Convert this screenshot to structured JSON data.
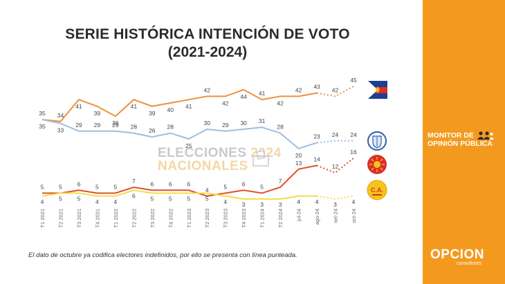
{
  "title": {
    "line1": "SERIE HISTÓRICA INTENCIÓN DE VOTO",
    "line2": "(2021-2024)"
  },
  "watermark": {
    "line1_a": "ELECCIONES ",
    "line1_b": "2024",
    "line2": "NACIONALES"
  },
  "footnote": "El dato de octubre ya codifica electores indefinidos, por ello se presenta con línea punteada.",
  "sidebar": {
    "monitor_line1": "MONITOR DE",
    "monitor_line2": "OPINIÓN PÚBLICA",
    "brand": "OPCION",
    "brand_sub": "consultores",
    "color": "#f39a1e"
  },
  "parties": [
    {
      "icon": "frente-amplio-flag-icon"
    },
    {
      "icon": "partido-nacional-shield-icon"
    },
    {
      "icon": "partido-colorado-sun-icon"
    },
    {
      "icon": "cabildo-abierto-logo-icon",
      "label": "C.A."
    }
  ],
  "chart_data": {
    "type": "line",
    "categories": [
      "T1 2021",
      "T2 2021",
      "T3 2021",
      "T4 2021",
      "T1 2022",
      "T2 2022",
      "T3 2022",
      "T4 2022",
      "T1 2023",
      "T2 2023",
      "T3 2023",
      "T4 2023",
      "T1 2024",
      "T2 2024",
      "jul-24",
      "ago-24",
      "set-24",
      "oct-24"
    ],
    "series": [
      {
        "values": [
          35,
          34,
          41,
          39,
          36,
          41,
          39,
          40,
          41,
          42,
          42,
          44,
          41,
          42,
          42,
          43,
          42,
          45
        ],
        "color": "#ee8f3b",
        "dashed_from_index": 16
      },
      {
        "values": [
          35,
          33,
          29,
          29,
          29,
          28,
          26,
          28,
          25,
          30,
          29,
          30,
          31,
          28,
          20,
          23,
          24,
          24
        ],
        "color": "#9dbfdf",
        "dashed_from_index": 16
      },
      {
        "values": [
          5,
          5,
          6,
          5,
          5,
          7,
          6,
          6,
          6,
          4,
          5,
          6,
          5,
          7,
          13,
          14,
          12,
          16
        ],
        "color": "#e0502a",
        "dashed_from_index": 16
      },
      {
        "values": [
          4,
          5,
          5,
          4,
          4,
          6,
          5,
          5,
          5,
          5,
          4,
          3,
          3,
          3,
          4,
          4,
          3,
          4
        ],
        "color": "#f5dc4e",
        "dashed_from_index": 16
      }
    ],
    "labels_below": {
      "0": [
        true,
        false,
        true,
        true,
        true,
        true,
        true,
        true,
        true,
        false,
        true,
        true,
        false,
        true,
        false,
        false,
        false,
        false
      ],
      "1": [
        true,
        true,
        false,
        false,
        false,
        false,
        false,
        false,
        true,
        false,
        false,
        false,
        false,
        false,
        true,
        false,
        false,
        false
      ]
    },
    "ylim": [
      0,
      50
    ],
    "grid": false,
    "legend": "right (party logos)"
  }
}
